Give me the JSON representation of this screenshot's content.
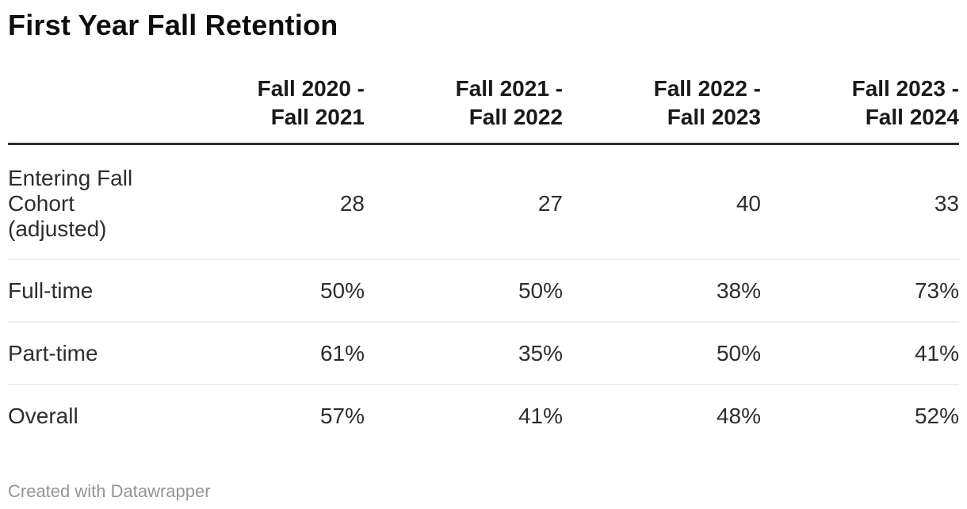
{
  "title": "First Year Fall Retention",
  "footer": {
    "attribution": "Created with Datawrapper"
  },
  "table": {
    "columns": [
      "Fall 2020 -\nFall 2021",
      "Fall 2021 -\nFall 2022",
      "Fall 2022 -\nFall 2023",
      "Fall 2023 -\nFall 2024"
    ],
    "rows": [
      {
        "label": "Entering Fall Cohort (adjusted)",
        "values": [
          "28",
          "27",
          "40",
          "33"
        ]
      },
      {
        "label": "Full-time",
        "values": [
          "50%",
          "50%",
          "38%",
          "73%"
        ]
      },
      {
        "label": "Part-time",
        "values": [
          "61%",
          "35%",
          "50%",
          "41%"
        ]
      },
      {
        "label": "Overall",
        "values": [
          "57%",
          "41%",
          "48%",
          "52%"
        ]
      }
    ]
  },
  "colors": {
    "title_text": "#0d0d0d",
    "header_text": "#1a1a1a",
    "body_text": "#2e2e2e",
    "header_rule": "#2e2e2e",
    "row_divider": "#ececec",
    "footer_text": "#949494",
    "background": "#ffffff"
  },
  "chart_data": {
    "type": "table",
    "title": "First Year Fall Retention",
    "categories": [
      "Fall 2020 - Fall 2021",
      "Fall 2021 - Fall 2022",
      "Fall 2022 - Fall 2023",
      "Fall 2023 - Fall 2024"
    ],
    "series": [
      {
        "name": "Entering Fall Cohort (adjusted)",
        "values": [
          28,
          27,
          40,
          33
        ]
      },
      {
        "name": "Full-time",
        "values": [
          "50%",
          "50%",
          "38%",
          "73%"
        ]
      },
      {
        "name": "Part-time",
        "values": [
          "61%",
          "35%",
          "50%",
          "41%"
        ]
      },
      {
        "name": "Overall",
        "values": [
          "57%",
          "41%",
          "48%",
          "52%"
        ]
      }
    ],
    "attribution": "Created with Datawrapper"
  }
}
